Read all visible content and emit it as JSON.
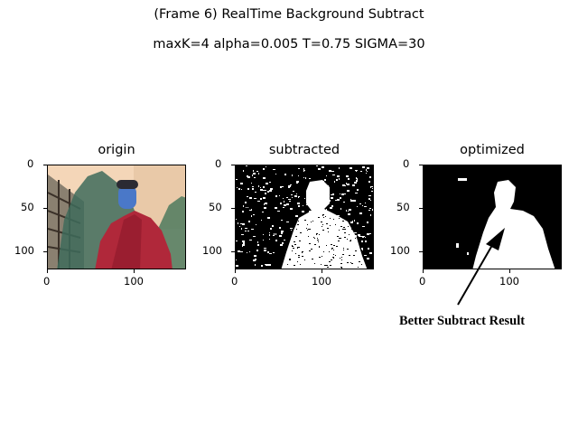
{
  "figure": {
    "title_line1": "(Frame 6) RealTime Background Subtract",
    "title_line2": "maxK=4 alpha=0.005 T=0.75 SIGMA=30"
  },
  "panels": [
    {
      "title": "origin"
    },
    {
      "title": "subtracted"
    },
    {
      "title": "optimized"
    }
  ],
  "axes": {
    "y_ticks": [
      "0",
      "50",
      "100"
    ],
    "x_ticks": [
      "0",
      "100"
    ]
  },
  "annotation": {
    "text": "Better Subtract Result",
    "arrow_color": "#000000"
  },
  "colors": {
    "sky": "#f4d6b8",
    "jacket": "#b0283a",
    "foliage": "#3e6b5a",
    "building": "#8a8070",
    "skin": "#4a78c8"
  }
}
